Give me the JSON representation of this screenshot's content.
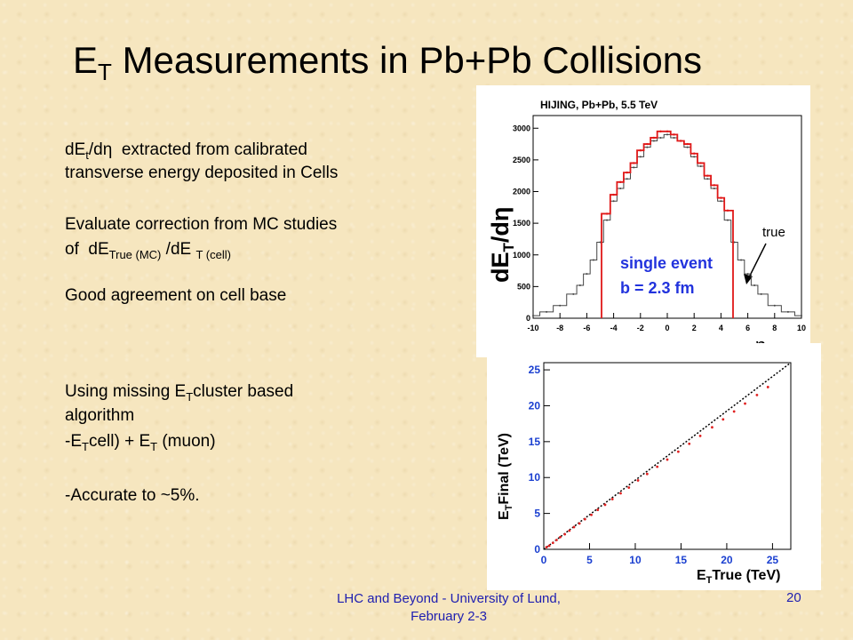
{
  "slide": {
    "title_main": "E",
    "title_sub": "T",
    "title_rest": " Measurements in Pb+Pb Collisions",
    "p1_l1_a": "dE",
    "p1_l1_sub": "t",
    "p1_l1_b": "/d",
    "p1_l1_eta": "η",
    "p1_l1_c": "  extracted from calibrated",
    "p1_l2": "transverse energy deposited in Cells",
    "p2_l1": "Evaluate correction from MC studies",
    "p2_l2_a": "of  dE",
    "p2_l2_sub1": "True (MC)",
    "p2_l2_b": " /dE ",
    "p2_l2_sub2": "T (cell)",
    "p3": "Good agreement on cell base",
    "p4_l1_a": "Using missing E",
    "p4_l1_sub": "T",
    "p4_l1_b": "cluster based",
    "p4_l2": "algorithm",
    "p4_l3_a": "-E",
    "p4_l3_sub": "T",
    "p4_l3_b": "cell) + E",
    "p4_l3_sub2": "T",
    "p4_l3_c": " (muon)",
    "p5": "-Accurate to ~5%.",
    "footer_l1": "LHC and Beyond - University of Lund,",
    "footer_l2": "February 2-3",
    "page_number": "20"
  },
  "chart_data": [
    {
      "type": "line",
      "title": "HIJING, Pb+Pb, 5.5 TeV",
      "ylabel": "dE",
      "ylabel_sub": "T",
      "ylabel_rest": "/dη",
      "xlabel": "η",
      "xlim": [
        -10,
        10
      ],
      "ylim": [
        0,
        3200
      ],
      "x_ticks": [
        -10,
        -8,
        -6,
        -4,
        -2,
        0,
        2,
        4,
        6,
        8,
        10
      ],
      "y_ticks": [
        0,
        500,
        1000,
        1500,
        2000,
        2500,
        3000
      ],
      "annotations": [
        "single event",
        "b = 2.3 fm",
        "true"
      ],
      "annotation_color": "#2233dd",
      "series": [
        {
          "name": "true",
          "color": "#444444",
          "x": [
            -10,
            -9,
            -8,
            -7,
            -6.5,
            -6,
            -5.5,
            -5,
            -4.5,
            -4,
            -3.5,
            -3,
            -2.5,
            -2,
            -1.5,
            -1,
            -0.5,
            0,
            0.5,
            1,
            1.5,
            2,
            2.5,
            3,
            3.5,
            4,
            4.5,
            5,
            5.5,
            6,
            6.5,
            7,
            8,
            9,
            10
          ],
          "y": [
            40,
            100,
            200,
            380,
            520,
            700,
            920,
            1200,
            1550,
            1850,
            2050,
            2200,
            2380,
            2550,
            2700,
            2800,
            2850,
            2900,
            2850,
            2800,
            2700,
            2550,
            2400,
            2200,
            2050,
            1850,
            1550,
            1200,
            920,
            700,
            520,
            380,
            200,
            100,
            40
          ]
        },
        {
          "name": "",
          "color": "#e01818",
          "x": [
            -4.5,
            -4,
            -3.5,
            -3,
            -2.5,
            -2,
            -1.5,
            -1,
            -0.5,
            0,
            0.5,
            1,
            1.5,
            2,
            2.5,
            3,
            3.5,
            4,
            4.5
          ],
          "y": [
            1650,
            1950,
            2150,
            2300,
            2450,
            2650,
            2750,
            2850,
            2950,
            2950,
            2900,
            2800,
            2750,
            2600,
            2450,
            2250,
            2100,
            1900,
            1700
          ]
        }
      ]
    },
    {
      "type": "scatter",
      "xlabel": "E",
      "xlabel_sub": "T",
      "xlabel_rest": "True (TeV)",
      "ylabel": "E",
      "ylabel_sub": "T",
      "ylabel_rest": "Final (TeV)",
      "xlim": [
        0,
        27
      ],
      "ylim": [
        0,
        26
      ],
      "x_ticks": [
        0,
        5,
        10,
        15,
        20,
        25
      ],
      "y_ticks": [
        0,
        5,
        10,
        15,
        20,
        25
      ],
      "axis_label_color": "#1a3fd0",
      "reference_line": [
        [
          0,
          0
        ],
        [
          27,
          26
        ]
      ],
      "series": [
        {
          "name": "",
          "color": "#e02020",
          "x": [
            0.3,
            0.6,
            1.0,
            1.4,
            1.8,
            2.3,
            2.8,
            3.3,
            3.9,
            4.5,
            5.2,
            5.9,
            6.7,
            7.5,
            8.4,
            9.3,
            10.3,
            11.3,
            12.4,
            13.5,
            14.7,
            15.9,
            17.1,
            18.4,
            19.6,
            20.8,
            22.0,
            23.3,
            24.5
          ],
          "y": [
            0.3,
            0.5,
            0.9,
            1.3,
            1.7,
            2.1,
            2.6,
            3.1,
            3.6,
            4.2,
            4.8,
            5.5,
            6.2,
            7.0,
            7.8,
            8.6,
            9.6,
            10.5,
            11.5,
            12.5,
            13.6,
            14.7,
            15.8,
            17.0,
            18.1,
            19.2,
            20.3,
            21.5,
            22.6
          ]
        }
      ]
    }
  ]
}
